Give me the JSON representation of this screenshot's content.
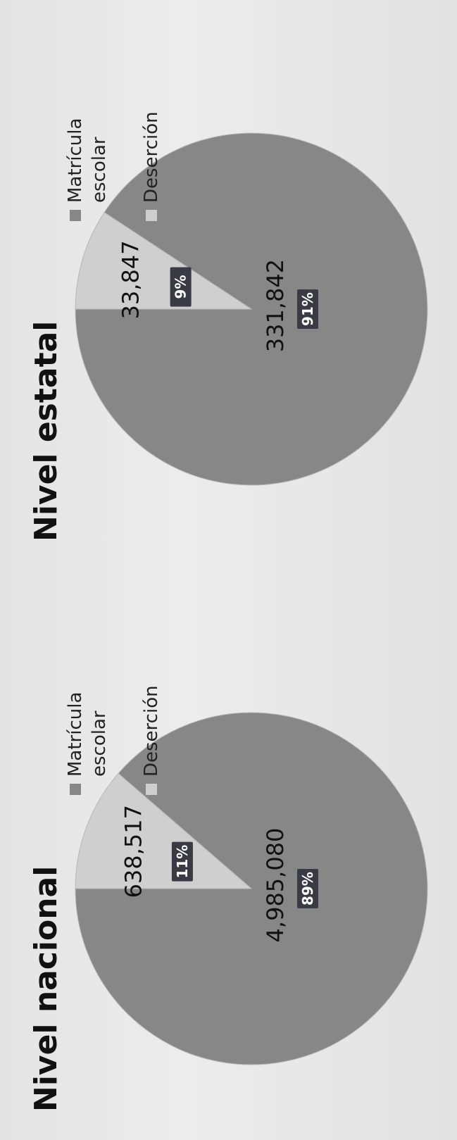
{
  "chart_data": [
    {
      "type": "pie",
      "title": "Nivel nacional",
      "categories": [
        "Matrícula escolar",
        "Deserción"
      ],
      "values": [
        4985080,
        638517
      ],
      "value_labels": [
        "4,985,080",
        "638,517"
      ],
      "percent_labels": [
        "89%",
        "11%"
      ],
      "colors": [
        "#878787",
        "#cfcfcf"
      ],
      "legend": {
        "placement": "right",
        "items": [
          {
            "lines": [
              "Matrícula",
              "escolar"
            ]
          },
          {
            "lines": [
              "Deserción"
            ]
          }
        ]
      }
    },
    {
      "type": "pie",
      "title": "Nivel estatal",
      "categories": [
        "Matrícula escolar",
        "Deserción"
      ],
      "values": [
        331842,
        33847
      ],
      "value_labels": [
        "331,842",
        "33,847"
      ],
      "percent_labels": [
        "91%",
        "9%"
      ],
      "colors": [
        "#878787",
        "#cfcfcf"
      ],
      "legend": {
        "placement": "right",
        "items": [
          {
            "lines": [
              "Matrícula",
              "escolar"
            ]
          },
          {
            "lines": [
              "Deserción"
            ]
          }
        ]
      }
    }
  ],
  "label_box_color": "#3a3a44"
}
